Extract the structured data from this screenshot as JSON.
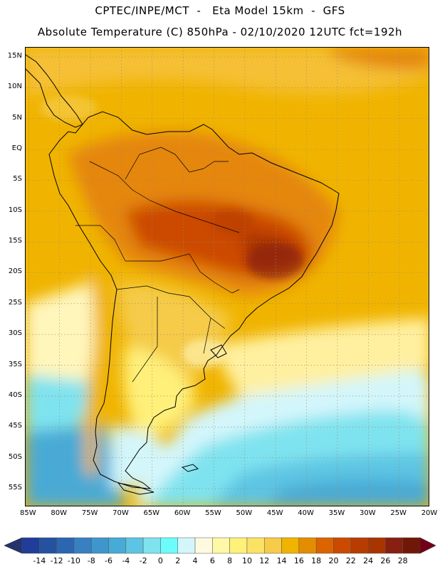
{
  "header": {
    "line1": "CPTEC/INPE/MCT  -   Eta Model 15km  -  GFS",
    "line2": "Absolute Temperature (C) 850hPa - 02/10/2020 12UTC fct=192h"
  },
  "map": {
    "lat_labels": [
      "15N",
      "10N",
      "5N",
      "EQ",
      "5S",
      "10S",
      "15S",
      "20S",
      "25S",
      "30S",
      "35S",
      "40S",
      "45S",
      "50S",
      "55S"
    ],
    "lat_values": [
      15,
      10,
      5,
      0,
      -5,
      -10,
      -15,
      -20,
      -25,
      -30,
      -35,
      -40,
      -45,
      -50,
      -55
    ],
    "lon_labels": [
      "85W",
      "80W",
      "75W",
      "70W",
      "65W",
      "60W",
      "55W",
      "50W",
      "45W",
      "40W",
      "35W",
      "30W",
      "25W",
      "20W"
    ],
    "lon_values": [
      -85,
      -80,
      -75,
      -70,
      -65,
      -60,
      -55,
      -50,
      -45,
      -40,
      -35,
      -30,
      -25,
      -20
    ],
    "lon_range": [
      -85.5,
      -20
    ],
    "lat_range": [
      -58,
      16.5
    ],
    "ocean_color": "#f0b400",
    "land_color": "#e08a1e"
  },
  "colorbar": {
    "labels": [
      "-14",
      "-12",
      "-10",
      "-8",
      "-6",
      "-4",
      "-2",
      "0",
      "2",
      "4",
      "6",
      "8",
      "10",
      "12",
      "14",
      "16",
      "18",
      "20",
      "22",
      "24",
      "26",
      "28"
    ],
    "colors": [
      "#1f3d99",
      "#24529f",
      "#2b66b0",
      "#3780c1",
      "#3f96cc",
      "#48aad6",
      "#5dc5e3",
      "#7fe3ef",
      "#6dfcfc",
      "#d3f6fb",
      "#fffadf",
      "#fff8a6",
      "#fff07a",
      "#fce264",
      "#f5cb48",
      "#f0b400",
      "#e58d00",
      "#dc6400",
      "#cc4a00",
      "#b83c00",
      "#a83400",
      "#881f10",
      "#701808"
    ],
    "left_arrow_color": "#24336e",
    "right_arrow_color": "#740018"
  }
}
